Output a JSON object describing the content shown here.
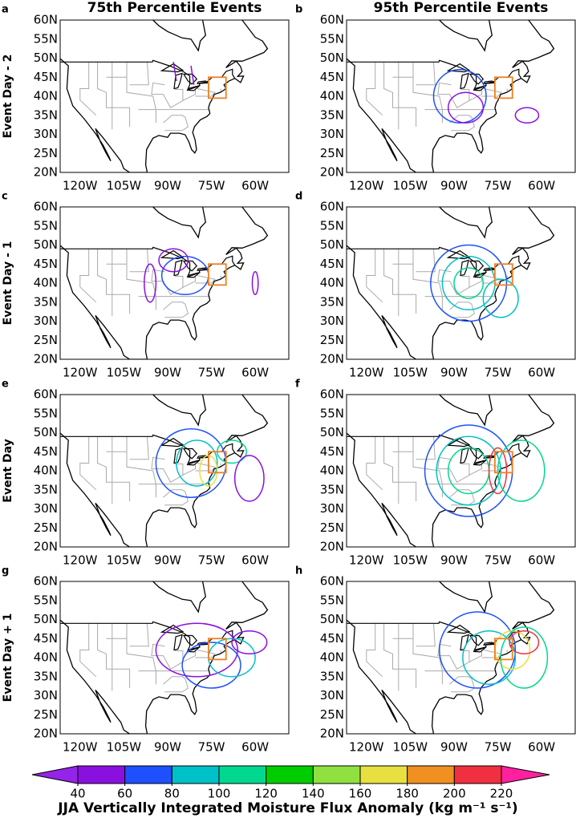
{
  "column_titles": [
    "75th Percentile Events",
    "95th Percentile Events"
  ],
  "row_labels": [
    "Event Day - 2",
    "Event Day - 1",
    "Event Day",
    "Event Day + 1"
  ],
  "panel_letters": [
    "a",
    "b",
    "c",
    "d",
    "e",
    "f",
    "g",
    "h"
  ],
  "lat_labels": [
    "60N",
    "55N",
    "50N",
    "45N",
    "40N",
    "35N",
    "30N",
    "25N",
    "20N"
  ],
  "lon_labels": [
    "120W",
    "105W",
    "90W",
    "75W",
    "60W"
  ],
  "colorbar": {
    "ticks": [
      40,
      60,
      80,
      100,
      120,
      140,
      160,
      180,
      200,
      220
    ],
    "colors": [
      "#9424e8",
      "#8a10e0",
      "#1e50ff",
      "#00c0c8",
      "#00d890",
      "#00cc00",
      "#90e040",
      "#e8e040",
      "#f09020",
      "#f03040",
      "#ff20a0"
    ],
    "label": "JJA Vertically Integrated Moisture Flux Anomaly (kg m⁻¹ s⁻¹)"
  }
}
